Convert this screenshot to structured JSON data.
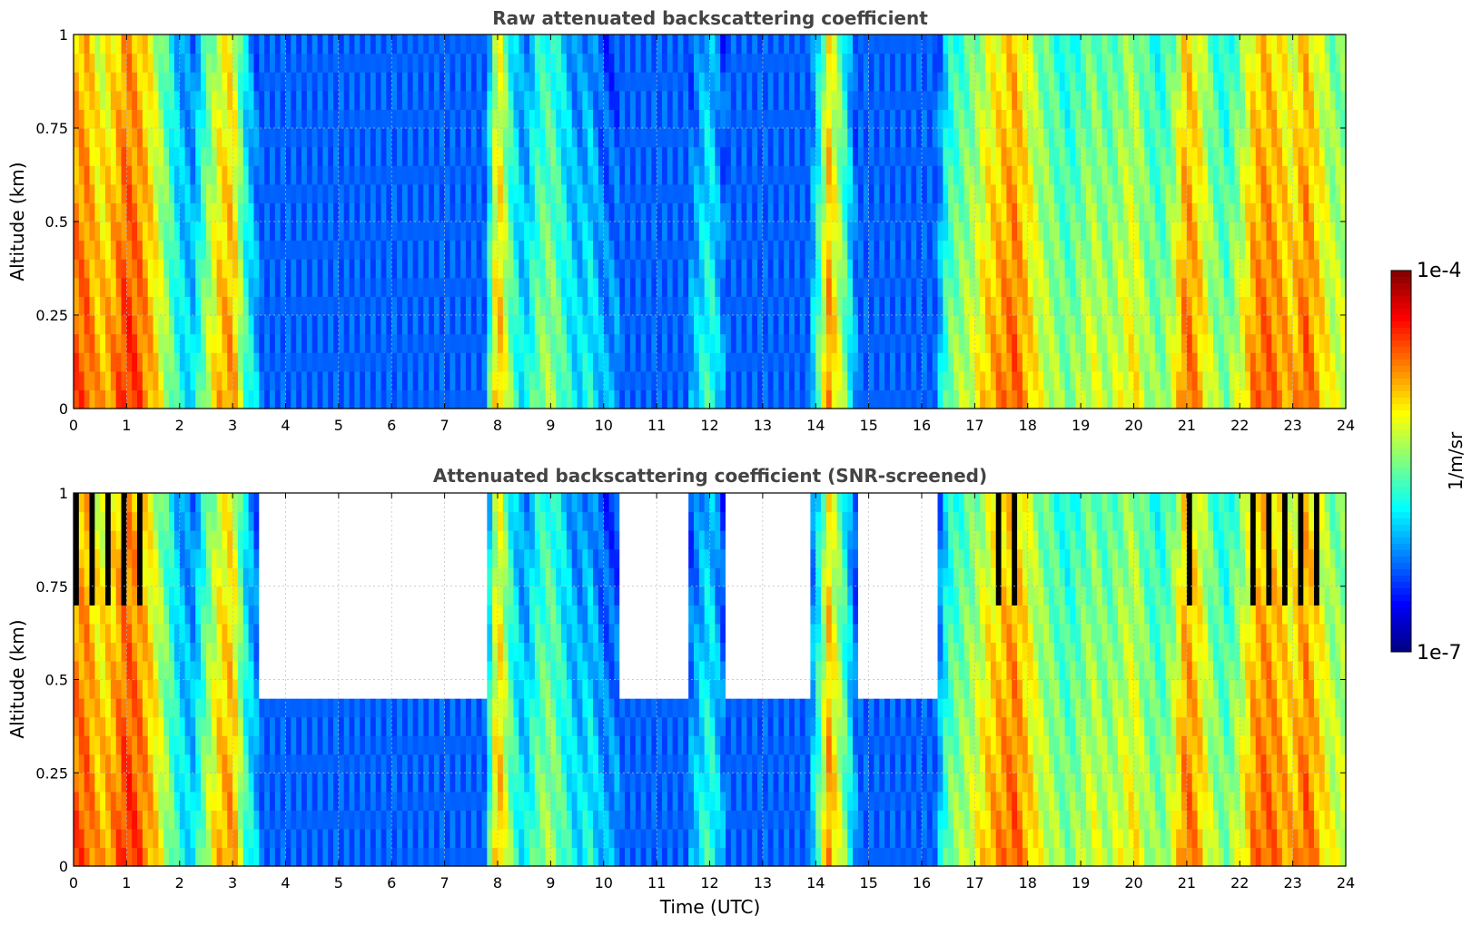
{
  "chart_data": [
    {
      "type": "heatmap",
      "title": "Raw attenuated backscattering coefficient",
      "xlabel": "",
      "ylabel": "Altitude (km)",
      "x_ticks": [
        "0",
        "1",
        "2",
        "3",
        "4",
        "5",
        "6",
        "7",
        "8",
        "9",
        "10",
        "11",
        "12",
        "13",
        "14",
        "15",
        "16",
        "17",
        "18",
        "19",
        "20",
        "21",
        "22",
        "23",
        "24"
      ],
      "y_ticks": [
        "0",
        "0.25",
        "0.5",
        "0.75",
        "1"
      ],
      "xlim": [
        0,
        24
      ],
      "ylim": [
        0,
        1
      ],
      "grid": true,
      "colorscale": "jet",
      "clim": [
        1e-07,
        0.0001
      ],
      "log_scale_color": true
    },
    {
      "type": "heatmap",
      "title": "Attenuated backscattering coefficient (SNR-screened)",
      "xlabel": "Time (UTC)",
      "ylabel": "Altitude (km)",
      "x_ticks": [
        "0",
        "1",
        "2",
        "3",
        "4",
        "5",
        "6",
        "7",
        "8",
        "9",
        "10",
        "11",
        "12",
        "13",
        "14",
        "15",
        "16",
        "17",
        "18",
        "19",
        "20",
        "21",
        "22",
        "23",
        "24"
      ],
      "y_ticks": [
        "0",
        "0.25",
        "0.5",
        "0.75",
        "1"
      ],
      "xlim": [
        0,
        24
      ],
      "ylim": [
        0,
        1
      ],
      "grid": true,
      "colorscale": "jet",
      "clim": [
        1e-07,
        0.0001
      ],
      "log_scale_color": true
    }
  ],
  "colorbar": {
    "label": "1/m/sr",
    "max_label": "1e-4",
    "min_label": "1e-7"
  },
  "intensity_profile": {
    "hours": [
      0,
      0.25,
      0.5,
      0.75,
      1,
      1.25,
      1.5,
      1.75,
      2,
      2.25,
      2.5,
      2.75,
      3,
      3.25,
      3.5,
      3.75,
      4,
      4.25,
      4.5,
      4.75,
      5,
      5.25,
      5.5,
      5.75,
      6,
      6.25,
      6.5,
      6.75,
      7,
      7.25,
      7.5,
      7.75,
      8,
      8.25,
      8.5,
      8.75,
      9,
      9.25,
      9.5,
      9.75,
      10,
      10.25,
      10.5,
      10.75,
      11,
      11.25,
      11.5,
      11.75,
      12,
      12.25,
      12.5,
      12.75,
      13,
      13.25,
      13.5,
      13.75,
      14,
      14.25,
      14.5,
      14.75,
      15,
      15.25,
      15.5,
      15.75,
      16,
      16.25,
      16.5,
      16.75,
      17,
      17.25,
      17.5,
      17.75,
      18,
      18.25,
      18.5,
      18.75,
      19,
      19.25,
      19.5,
      19.75,
      20,
      20.25,
      20.5,
      20.75,
      21,
      21.25,
      21.5,
      21.75,
      22,
      22.25,
      22.5,
      22.75,
      23,
      23.25,
      23.5,
      23.75
    ],
    "levels": [
      0.8,
      0.8,
      0.7,
      0.75,
      0.85,
      0.8,
      0.7,
      0.55,
      0.4,
      0.35,
      0.55,
      0.7,
      0.75,
      0.45,
      0.3,
      0.25,
      0.2,
      0.2,
      0.2,
      0.2,
      0.2,
      0.2,
      0.2,
      0.2,
      0.2,
      0.2,
      0.2,
      0.2,
      0.2,
      0.2,
      0.2,
      0.25,
      0.75,
      0.5,
      0.35,
      0.5,
      0.55,
      0.45,
      0.35,
      0.4,
      0.3,
      0.3,
      0.2,
      0.2,
      0.2,
      0.2,
      0.25,
      0.35,
      0.45,
      0.3,
      0.2,
      0.2,
      0.2,
      0.2,
      0.2,
      0.2,
      0.4,
      0.75,
      0.55,
      0.3,
      0.2,
      0.2,
      0.2,
      0.2,
      0.2,
      0.25,
      0.5,
      0.55,
      0.6,
      0.7,
      0.75,
      0.8,
      0.7,
      0.6,
      0.55,
      0.5,
      0.55,
      0.6,
      0.55,
      0.6,
      0.65,
      0.55,
      0.5,
      0.6,
      0.8,
      0.7,
      0.55,
      0.5,
      0.6,
      0.75,
      0.8,
      0.75,
      0.7,
      0.8,
      0.7,
      0.6
    ]
  }
}
